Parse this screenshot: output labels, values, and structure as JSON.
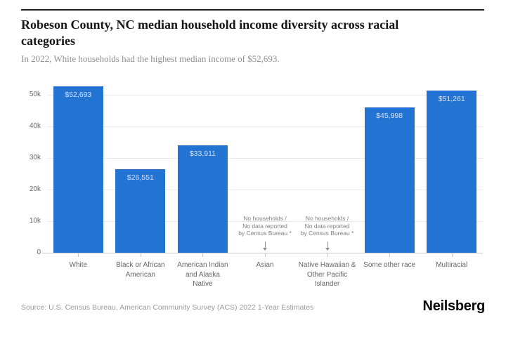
{
  "header": {
    "title": "Robeson County, NC median household income diversity across racial categories",
    "subtitle": "In 2022, White households had the highest median income of $52,693."
  },
  "chart_data": {
    "type": "bar",
    "title": "Robeson County, NC median household income diversity across racial categories",
    "subtitle": "In 2022, White households had the highest median income of $52,693.",
    "categories": [
      "White",
      "Black or African American",
      "American Indian and Alaska Native",
      "Asian",
      "Native Hawaiian & Other Pacific Islander",
      "Some other race",
      "Multiracial"
    ],
    "category_display": [
      "White",
      "Black or African\nAmerican",
      "American Indian\nand Alaska\nNative",
      "Asian",
      "Native Hawaiian &\nOther Pacific\nIslander",
      "Some other race",
      "Multiracial"
    ],
    "values": [
      52693,
      26551,
      33911,
      null,
      null,
      45998,
      51261
    ],
    "value_labels": [
      "$52,693",
      "$26,551",
      "$33,911",
      null,
      null,
      "$45,998",
      "$51,261"
    ],
    "no_data_note": "No households /\nNo data reported\nby Census Bureau *",
    "xlabel": "",
    "ylabel": "",
    "ylim": [
      0,
      53000
    ],
    "yticks": [
      0,
      10000,
      20000,
      30000,
      40000,
      50000
    ],
    "ytick_labels": [
      "0",
      "10k",
      "20k",
      "30k",
      "40k",
      "50k"
    ],
    "grid": true,
    "legend": false,
    "bar_color": "#2273d2",
    "bar_label_color": "#d2e1f5"
  },
  "footer": {
    "source": "Source: U.S. Census Bureau, American Community Survey (ACS) 2022 1-Year Estimates",
    "brand": "Neilsberg"
  }
}
